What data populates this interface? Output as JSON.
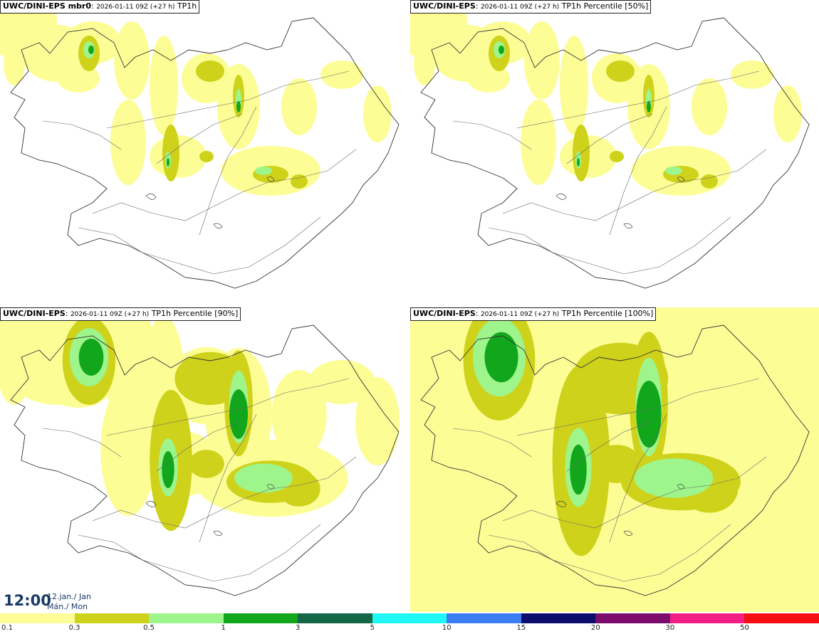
{
  "panels": [
    {
      "model": "UWC/DINI-EPS mbr0",
      "meta": "2026-01-11 09Z (+27 h)",
      "field": "TP1h",
      "intensity": 0
    },
    {
      "model": "UWC/DINI-EPS",
      "meta": "2026-01-11 09Z (+27 h)",
      "field": "TP1h Percentile [50%]",
      "intensity": 0
    },
    {
      "model": "UWC/DINI-EPS",
      "meta": "2026-01-11 09Z (+27 h)",
      "field": "TP1h Percentile [90%]",
      "intensity": 1
    },
    {
      "model": "UWC/DINI-EPS",
      "meta": "2026-01-11 09Z (+27 h)",
      "field": "TP1h Percentile [100%]",
      "intensity": 2
    }
  ],
  "valid_time": {
    "time": "12:00",
    "date_line1": "12.jan./ Jan",
    "date_line2": "Mán./ Mon"
  },
  "legend": {
    "labels": [
      "0.1",
      "0.3",
      "0.5",
      "1",
      "3",
      "5",
      "10",
      "15",
      "20",
      "30",
      "50"
    ],
    "colors": [
      "#fdfd96",
      "#cfd21a",
      "#9df58c",
      "#11a61c",
      "#136646",
      "#1ef7f4",
      "#3c7df2",
      "#0a0d6c",
      "#7d0b6e",
      "#f31d86",
      "#f50f12"
    ]
  }
}
